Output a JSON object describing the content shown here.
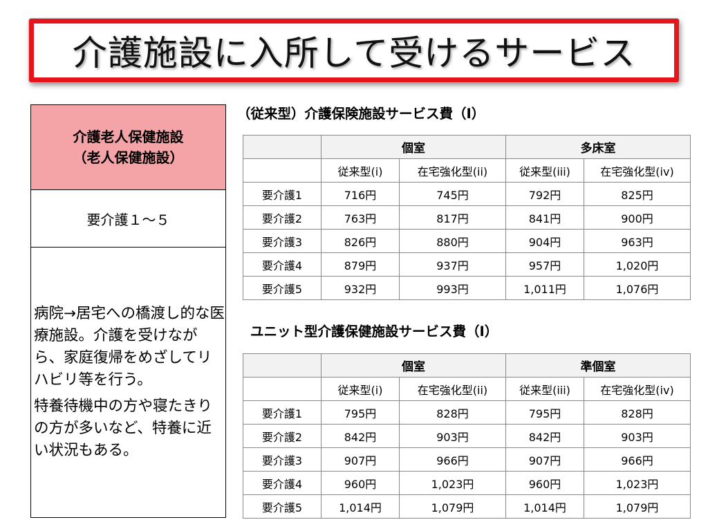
{
  "title": "介護施設に入所して受けるサービス",
  "left_panel": {
    "header_line1": "介護老人保健施設",
    "header_line2": "（老人保健施設）",
    "level": "要介護１～５",
    "description_1": "病院→居宅への橋渡し的な医療施設。介護を受けながら、家庭復帰をめざしてリハビリ等を行う。",
    "description_2": "特養待機中の方や寝たきりの方が多いなど、特養に近い状況もある。"
  },
  "table1": {
    "caption": "（従来型）介護保険施設サービス費（Ⅰ）",
    "group1": "個室",
    "group2": "多床室",
    "cols": [
      "従来型(i)",
      "在宅強化型(ii)",
      "従来型(iii)",
      "在宅強化型(iv)"
    ],
    "rows": [
      {
        "label": "要介護1",
        "cells": [
          "716円",
          "745円",
          "792円",
          "825円"
        ]
      },
      {
        "label": "要介護2",
        "cells": [
          "763円",
          "817円",
          "841円",
          "900円"
        ]
      },
      {
        "label": "要介護3",
        "cells": [
          "826円",
          "880円",
          "904円",
          "963円"
        ]
      },
      {
        "label": "要介護4",
        "cells": [
          "879円",
          "937円",
          "957円",
          "1,020円"
        ]
      },
      {
        "label": "要介護5",
        "cells": [
          "932円",
          "993円",
          "1,011円",
          "1,076円"
        ]
      }
    ]
  },
  "table2": {
    "caption": "ユニット型介護保健施設サービス費（Ⅰ）",
    "group1": "個室",
    "group2": "準個室",
    "cols": [
      "従来型(i)",
      "在宅強化型(ii)",
      "従来型(iii)",
      "在宅強化型(iv)"
    ],
    "rows": [
      {
        "label": "要介護1",
        "cells": [
          "795円",
          "828円",
          "795円",
          "828円"
        ]
      },
      {
        "label": "要介護2",
        "cells": [
          "842円",
          "903円",
          "842円",
          "903円"
        ]
      },
      {
        "label": "要介護3",
        "cells": [
          "907円",
          "966円",
          "907円",
          "966円"
        ]
      },
      {
        "label": "要介護4",
        "cells": [
          "960円",
          "1,023円",
          "960円",
          "1,023円"
        ]
      },
      {
        "label": "要介護5",
        "cells": [
          "1,014円",
          "1,079円",
          "1,014円",
          "1,079円"
        ]
      }
    ]
  },
  "colors": {
    "title_border": "#e8141c",
    "left_header_bg": "#f4a3a6",
    "table_header_bg": "#f2f2f2"
  }
}
